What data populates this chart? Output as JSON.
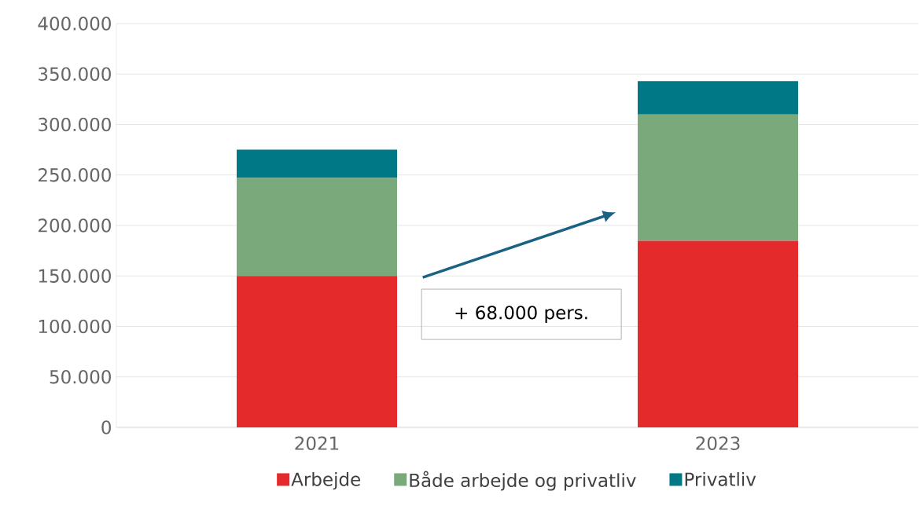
{
  "chart_data": {
    "type": "bar",
    "stacked": true,
    "categories": [
      "2021",
      "2023"
    ],
    "series": [
      {
        "name": "Arbejde",
        "color": "#e52a2b",
        "values": [
          150000,
          185000
        ]
      },
      {
        "name": "Både arbejde og privatliv",
        "color": "#7aa97c",
        "values": [
          97000,
          125000
        ]
      },
      {
        "name": "Privatliv",
        "color": "#017886",
        "values": [
          28000,
          33000
        ]
      }
    ],
    "ylim": [
      0,
      400000
    ],
    "yticks": [
      {
        "value": 0,
        "label": "0"
      },
      {
        "value": 50000,
        "label": "50.000"
      },
      {
        "value": 100000,
        "label": "100.000"
      },
      {
        "value": 150000,
        "label": "150.000"
      },
      {
        "value": 200000,
        "label": "200.000"
      },
      {
        "value": 250000,
        "label": "250.000"
      },
      {
        "value": 300000,
        "label": "300.000"
      },
      {
        "value": 350000,
        "label": "350.000"
      },
      {
        "value": 400000,
        "label": "400.000"
      }
    ],
    "grid": "y",
    "legend": "bottom",
    "annotations": [
      "+ 68.000 pers."
    ]
  }
}
